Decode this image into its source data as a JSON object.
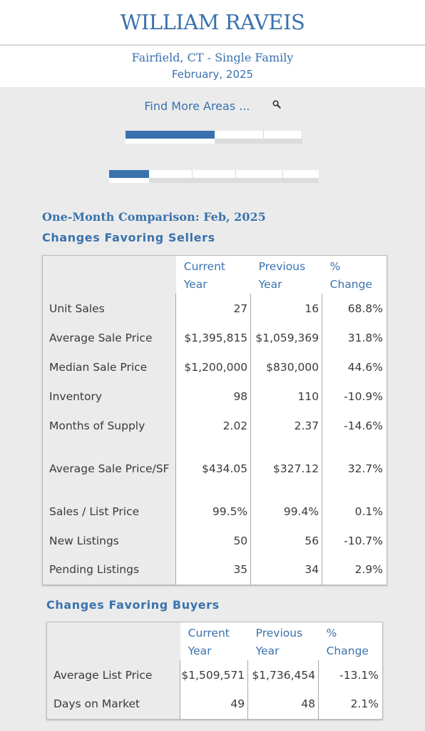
{
  "header": {
    "logo": "WILLIAM RAVEIS"
  },
  "subheader": {
    "area": "Fairfield, CT - Single Family",
    "month": "February, 2025"
  },
  "find_more": {
    "label": "Find More Areas ..."
  },
  "icons": {
    "search": "search-icon"
  },
  "colors": {
    "accent": "#3a72ad",
    "background": "#ebebeb"
  },
  "comparison": {
    "title": "One-Month Comparison:  Feb, 2025",
    "sellers_heading": "Changes Favoring Sellers",
    "buyers_heading": "Changes Favoring Buyers",
    "columns": {
      "current_1": "Current",
      "current_2": "Year",
      "previous_1": "Previous",
      "previous_2": "Year",
      "change_1": "%",
      "change_2": "Change"
    },
    "sellers_rows": [
      {
        "label": "Unit Sales",
        "current": "27",
        "previous": "16",
        "change": "68.8%"
      },
      {
        "label": "Average Sale Price",
        "current": "$1,395,815",
        "previous": "$1,059,369",
        "change": "31.8%"
      },
      {
        "label": "Median Sale Price",
        "current": "$1,200,000",
        "previous": "$830,000",
        "change": "44.6%"
      },
      {
        "label": "Inventory",
        "current": "98",
        "previous": "110",
        "change": "-10.9%"
      },
      {
        "label": "Months of Supply",
        "current": "2.02",
        "previous": "2.37",
        "change": "-14.6%"
      },
      {
        "label": "Average Sale Price/SF",
        "current": "$434.05",
        "previous": "$327.12",
        "change": "32.7%"
      },
      {
        "label": "Sales / List Price",
        "current": "99.5%",
        "previous": "99.4%",
        "change": "0.1%"
      },
      {
        "label": "New Listings",
        "current": "50",
        "previous": "56",
        "change": "-10.7%"
      },
      {
        "label": "Pending Listings",
        "current": "35",
        "previous": "34",
        "change": "2.9%"
      }
    ],
    "buyers_rows": [
      {
        "label": "Average List Price",
        "current": "$1,509,571",
        "previous": "$1,736,454",
        "change": "-13.1%"
      },
      {
        "label": "Days on Market",
        "current": "49",
        "previous": "48",
        "change": "2.1%"
      }
    ]
  }
}
